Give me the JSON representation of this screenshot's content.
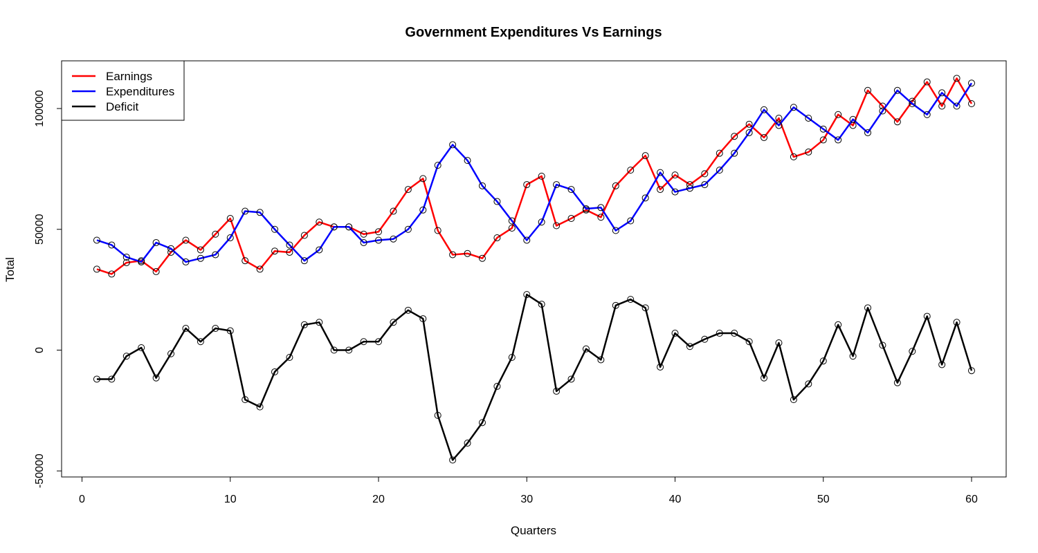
{
  "chart_data": {
    "type": "line",
    "title": "Government Expenditures Vs Earnings",
    "xlabel": "Quarters",
    "ylabel": "Total",
    "xlim": [
      0,
      60
    ],
    "ylim": [
      -50000,
      100000
    ],
    "x_ticks": [
      0,
      10,
      20,
      30,
      40,
      50,
      60
    ],
    "y_ticks": [
      -50000,
      0,
      50000,
      100000
    ],
    "grid": false,
    "legend_position": "top-left",
    "x": [
      1,
      2,
      3,
      4,
      5,
      6,
      7,
      8,
      9,
      10,
      11,
      12,
      13,
      14,
      15,
      16,
      17,
      18,
      19,
      20,
      21,
      22,
      23,
      24,
      25,
      26,
      27,
      28,
      29,
      30,
      31,
      32,
      33,
      34,
      35,
      36,
      37,
      38,
      39,
      40,
      41,
      42,
      43,
      44,
      45,
      46,
      47,
      48,
      49,
      50,
      51,
      52,
      53,
      54,
      55,
      56,
      57,
      58,
      59,
      60
    ],
    "series": [
      {
        "name": "Earnings",
        "color": "#ff0000",
        "values": [
          33500,
          31500,
          36200,
          37000,
          32500,
          40500,
          45500,
          41500,
          48000,
          54500,
          37000,
          33500,
          41000,
          40500,
          47500,
          53000,
          51000,
          51000,
          48000,
          49000,
          57500,
          66500,
          71000,
          49500,
          39500,
          40000,
          38000,
          46500,
          50500,
          68500,
          72000,
          51500,
          54500,
          58000,
          55000,
          68000,
          74500,
          80500,
          66500,
          72500,
          68500,
          73000,
          81500,
          88500,
          93500,
          88000,
          96000,
          80000,
          82000,
          87000,
          97500,
          93000,
          107500,
          101000,
          94500,
          103000,
          111000,
          101000,
          112500,
          102000
        ]
      },
      {
        "name": "Expenditures",
        "color": "#0000ff",
        "values": [
          45500,
          43500,
          38500,
          36500,
          44500,
          42000,
          36500,
          38000,
          39500,
          46500,
          57500,
          57000,
          50000,
          43500,
          37000,
          41500,
          51000,
          51000,
          44500,
          45500,
          46000,
          50000,
          58000,
          76500,
          85000,
          78500,
          68000,
          61500,
          53500,
          45500,
          53000,
          68500,
          66500,
          58500,
          59000,
          49500,
          53500,
          63000,
          73500,
          65500,
          67000,
          68500,
          74500,
          81500,
          90000,
          99500,
          93000,
          100500,
          96000,
          91500,
          87000,
          95500,
          90000,
          99000,
          107500,
          102000,
          97500,
          106500,
          101000,
          110500
        ]
      },
      {
        "name": "Deficit",
        "color": "#000000",
        "values": [
          -12000,
          -12000,
          -2500,
          1000,
          -11500,
          -1500,
          9000,
          3500,
          9000,
          8000,
          -20500,
          -23500,
          -9000,
          -3000,
          10500,
          11500,
          0,
          0,
          3500,
          3500,
          11500,
          16500,
          13000,
          -27000,
          -45500,
          -38500,
          -30000,
          -15000,
          -3000,
          23000,
          19000,
          -17000,
          -12000,
          500,
          -4000,
          18500,
          21000,
          17500,
          -7000,
          7000,
          1500,
          4500,
          7000,
          7000,
          3500,
          -11500,
          3000,
          -20500,
          -14000,
          -4500,
          10500,
          -2500,
          17500,
          2000,
          -13500,
          -500,
          14000,
          -6000,
          11500,
          -8500
        ]
      }
    ]
  }
}
